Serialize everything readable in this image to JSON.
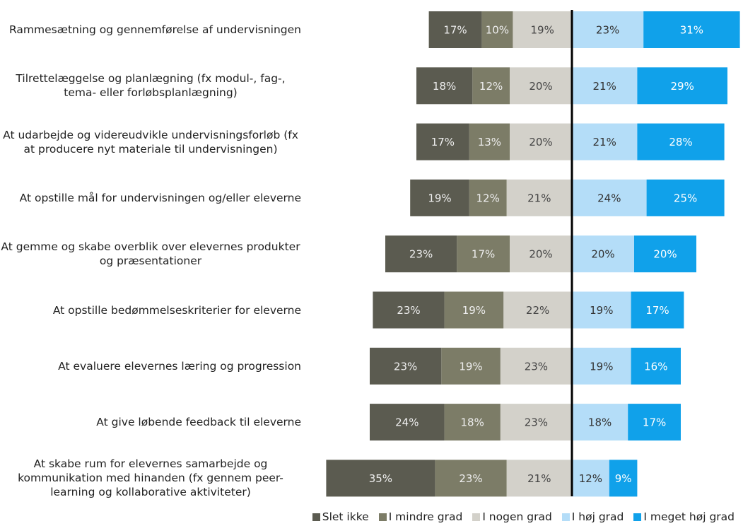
{
  "chart_data": {
    "type": "diverging-stacked-bar",
    "categories": [
      "Rammesætning og gennemførelse af undervisningen",
      "Tilrettelæggelse og planlægning (fx modul-, fag-, tema- eller forløbsplanlægning)",
      "At udarbejde og videreudvikle undervisningsforløb (fx at producere nyt materiale til undervisningen)",
      "At opstille mål for undervisningen og/eller eleverne",
      "At gemme og skabe overblik over elevernes produkter og præsentationer",
      "At opstille bedømmelseskriterier for eleverne",
      "At evaluere elevernes læring og progression",
      "At give løbende feedback til eleverne",
      "At skabe rum for elevernes samarbejde og kommunikation med hinanden (fx gennem peer-learning og kollaborative aktiviteter)"
    ],
    "series": [
      {
        "name": "Slet ikke",
        "color": "#5b5b50",
        "values": [
          17,
          18,
          17,
          19,
          23,
          23,
          23,
          24,
          35
        ],
        "value_labels": [
          "17%",
          "18%",
          "17%",
          "19%",
          "23%",
          "23%",
          "23%",
          "24%",
          "35%"
        ]
      },
      {
        "name": "I mindre grad",
        "color": "#7c7c67",
        "values": [
          10,
          12,
          13,
          12,
          17,
          19,
          19,
          18,
          23
        ],
        "value_labels": [
          "10%",
          "12%",
          "13%",
          "12%",
          "17%",
          "19%",
          "19%",
          "18%",
          "23%"
        ]
      },
      {
        "name": "I nogen grad",
        "color": "#d3d1ca",
        "values": [
          19,
          20,
          20,
          21,
          20,
          22,
          23,
          23,
          21
        ],
        "value_labels": [
          "19%",
          "20%",
          "20%",
          "21%",
          "20%",
          "22%",
          "23%",
          "23%",
          "21%"
        ]
      },
      {
        "name": "I høj grad",
        "color": "#b4ddf8",
        "values": [
          23,
          21,
          21,
          24,
          20,
          19,
          19,
          18,
          12
        ],
        "value_labels": [
          "23%",
          "21%",
          "21%",
          "24%",
          "20%",
          "19%",
          "19%",
          "18%",
          "12%"
        ]
      },
      {
        "name": "I meget høj grad",
        "color": "#10a1ea",
        "values": [
          31,
          29,
          28,
          25,
          20,
          17,
          16,
          17,
          9
        ],
        "value_labels": [
          "31%",
          "29%",
          "28%",
          "25%",
          "20%",
          "17%",
          "16%",
          "17%",
          "9%"
        ]
      }
    ]
  }
}
